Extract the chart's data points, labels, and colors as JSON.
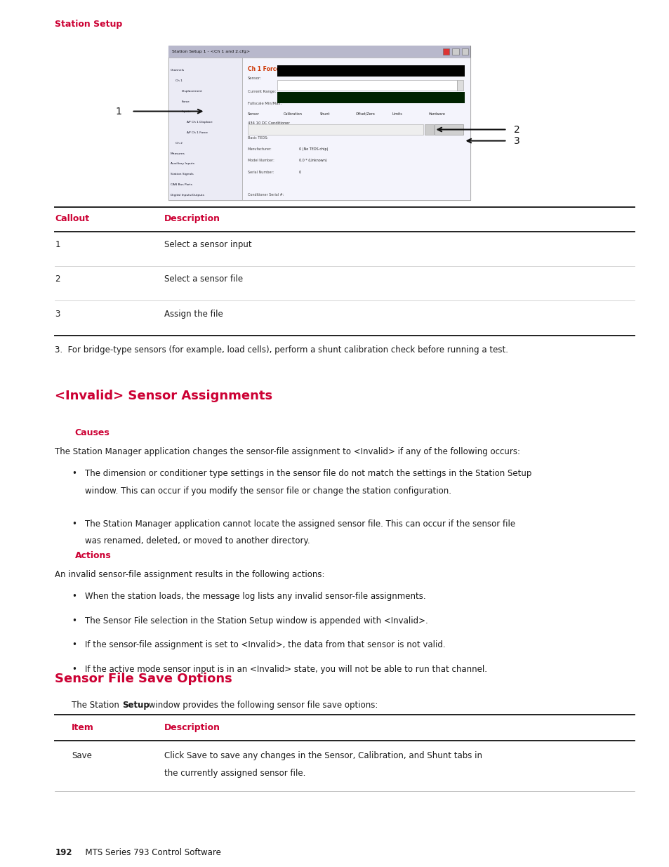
{
  "page_bg": "#ffffff",
  "header_text": "Station Setup",
  "header_color": "#cc0033",
  "header_fontsize": 9,
  "callout_label": "Callout",
  "desc_label": "Description",
  "table_header_color": "#cc0033",
  "table_header_fontsize": 9,
  "callout_rows": [
    {
      "num": "1",
      "desc": "Select a sensor input"
    },
    {
      "num": "2",
      "desc": "Select a sensor file"
    },
    {
      "num": "3",
      "desc": "Assign the file"
    }
  ],
  "note_text": "3.  For bridge-type sensors (for example, load cells), perform a shunt calibration check before running a test.",
  "section1_title": "<Invalid> Sensor Assignments",
  "section1_title_color": "#cc0033",
  "section1_title_fontsize": 13,
  "causes_label": "Causes",
  "causes_color": "#cc0033",
  "causes_fontsize": 9,
  "causes_intro": "The Station Manager application changes the sensor-file assignment to <Invalid> if any of the following occurs:",
  "causes_bullets": [
    [
      "The dimension or conditioner type settings in the sensor file do not match the settings in the Station Setup",
      "window. This can occur if you modify the sensor file or change the station configuration."
    ],
    [
      "The Station Manager application cannot locate the assigned sensor file. This can occur if the sensor file",
      "was renamed, deleted, or moved to another directory."
    ]
  ],
  "actions_label": "Actions",
  "actions_color": "#cc0033",
  "actions_fontsize": 9,
  "actions_intro": "An invalid sensor-file assignment results in the following actions:",
  "actions_bullets": [
    "When the station loads, the message log lists any invalid sensor-file assignments.",
    "The Sensor File selection in the Station Setup window is appended with <Invalid>.",
    "If the sensor-file assignment is set to <Invalid>, the data from that sensor is not valid.",
    "If the active mode sensor input is in an <Invalid> state, you will not be able to run that channel."
  ],
  "section2_title": "Sensor File Save Options",
  "section2_title_color": "#cc0033",
  "section2_title_fontsize": 13,
  "save_table_headers": [
    "Item",
    "Description"
  ],
  "save_table_rows": [
    [
      "Save",
      [
        "Click Save to save any changes in the Sensor, Calibration, and Shunt tabs in",
        "the currently assigned sensor file."
      ]
    ]
  ],
  "footer_bold": "192",
  "footer_rest": "  MTS Series 793 Control Software",
  "body_fontsize": 8.5,
  "body_color": "#1a1a1a",
  "lm": 0.082,
  "rm": 0.948,
  "indent1": 0.115,
  "indent2": 0.135,
  "col2": 0.245
}
